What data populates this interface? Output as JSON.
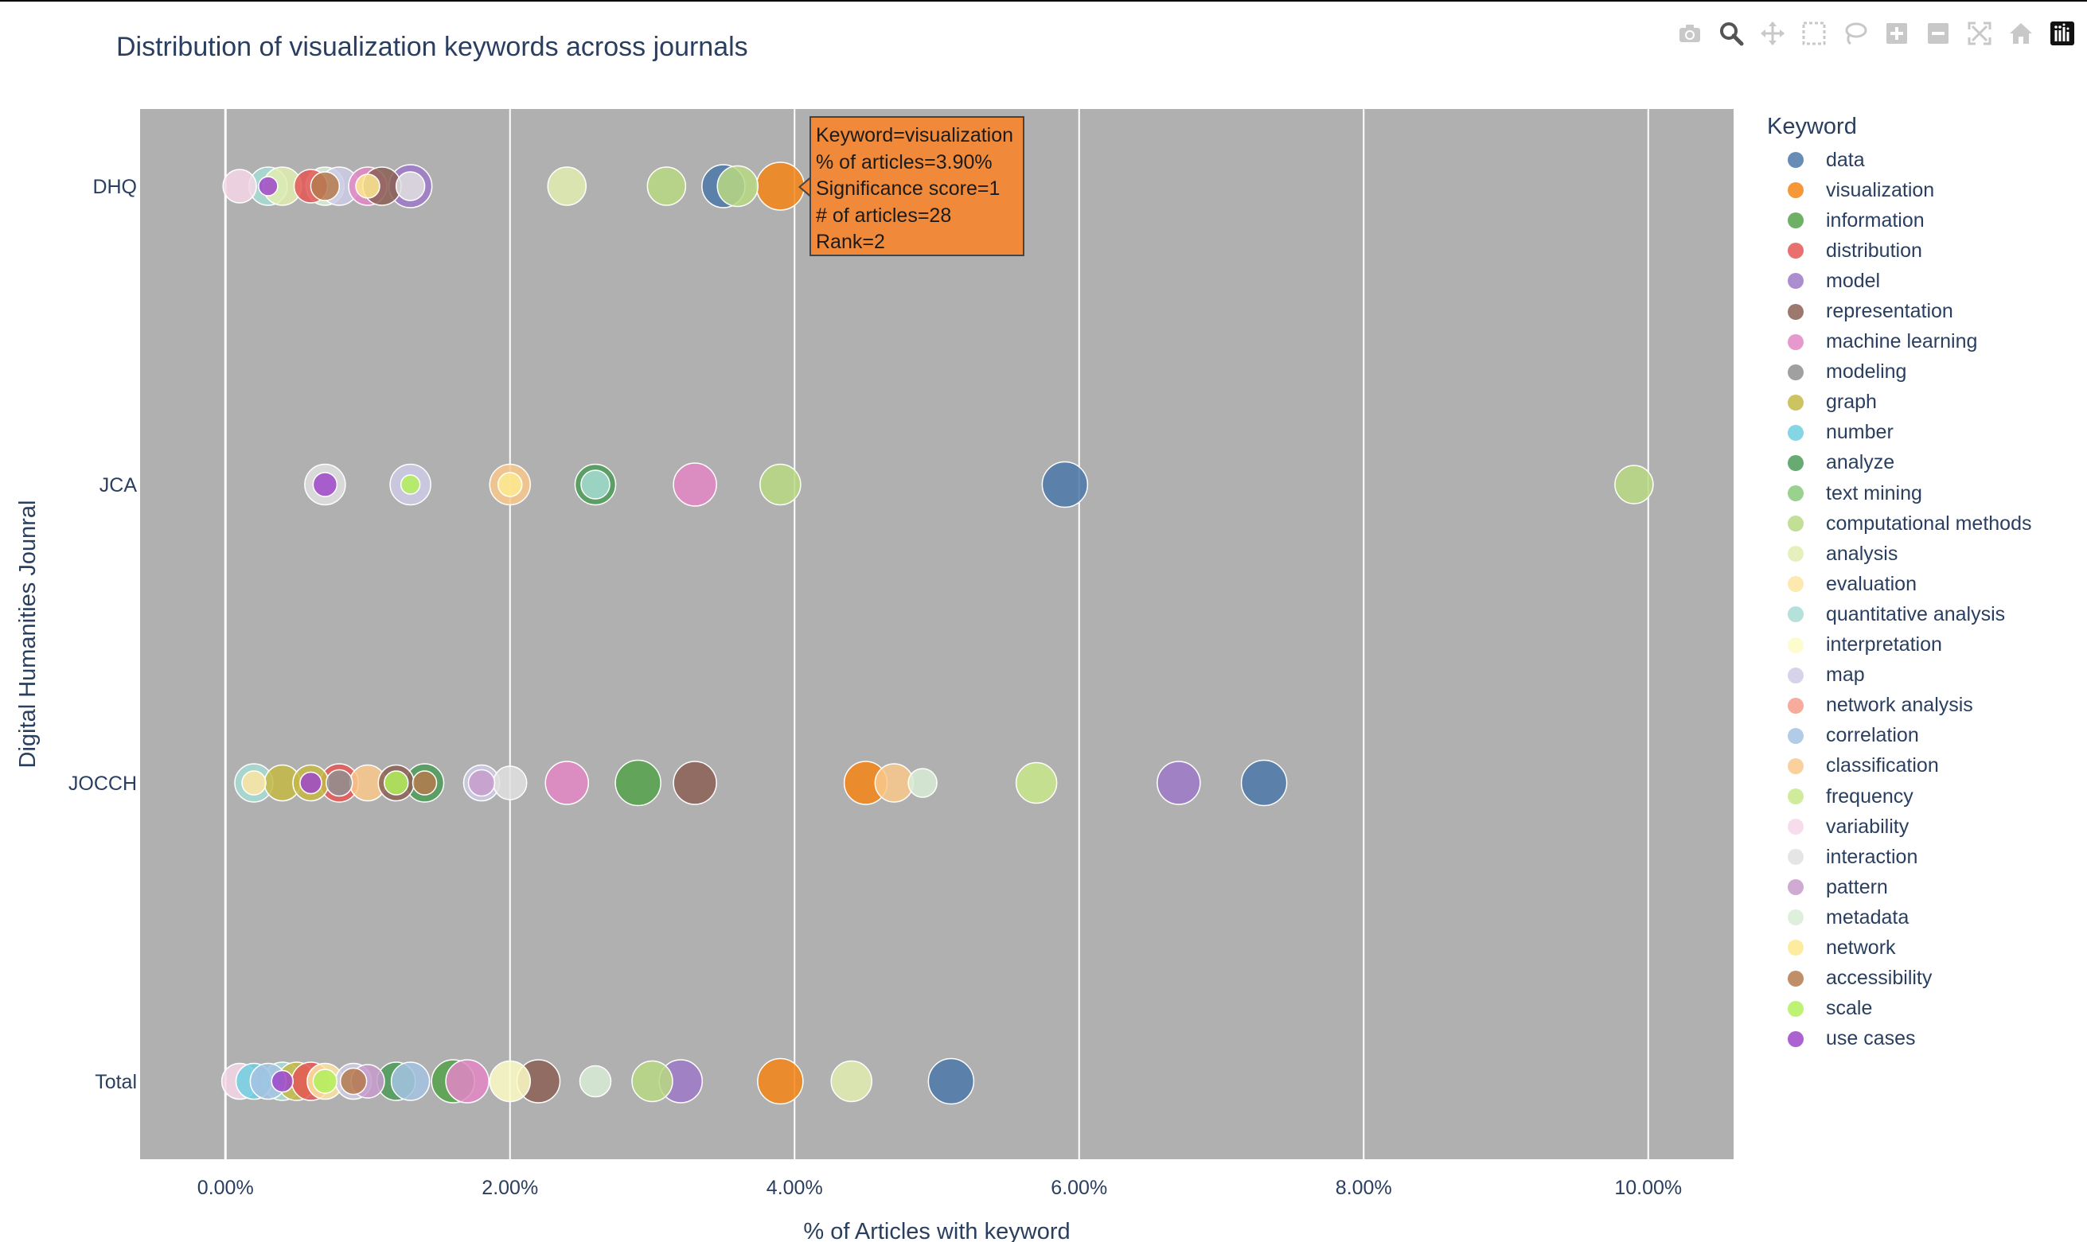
{
  "title": "Distribution of visualization keywords across journals",
  "modebar": {
    "buttons": [
      "camera-icon",
      "zoom-icon",
      "pan-icon",
      "box-select-icon",
      "lasso-icon",
      "zoom-in-icon",
      "zoom-out-icon",
      "autoscale-icon",
      "home-icon",
      "plotly-logo-icon"
    ]
  },
  "legend": {
    "title": "Keyword",
    "items": [
      {
        "label": "data",
        "color": "#4c78a8"
      },
      {
        "label": "visualization",
        "color": "#f58518"
      },
      {
        "label": "information",
        "color": "#54a24b"
      },
      {
        "label": "distribution",
        "color": "#e45756"
      },
      {
        "label": "model",
        "color": "#9d7ac8"
      },
      {
        "label": "representation",
        "color": "#8c6056"
      },
      {
        "label": "machine learning",
        "color": "#e387c6"
      },
      {
        "label": "modeling",
        "color": "#8f8f8f"
      },
      {
        "label": "graph",
        "color": "#c5b845"
      },
      {
        "label": "number",
        "color": "#6fcfe0"
      },
      {
        "label": "analyze",
        "color": "#4c9c5a"
      },
      {
        "label": "text mining",
        "color": "#88c97b"
      },
      {
        "label": "computational methods",
        "color": "#b8d982"
      },
      {
        "label": "analysis",
        "color": "#e2edb0"
      },
      {
        "label": "evaluation",
        "color": "#fde4a2"
      },
      {
        "label": "quantitative analysis",
        "color": "#a7dcd4"
      },
      {
        "label": "interpretation",
        "color": "#fdfbc6"
      },
      {
        "label": "map",
        "color": "#cdcbe6"
      },
      {
        "label": "network analysis",
        "color": "#f59c8c"
      },
      {
        "label": "correlation",
        "color": "#a5c3e3"
      },
      {
        "label": "classification",
        "color": "#f9c98c"
      },
      {
        "label": "frequency",
        "color": "#c9e88c"
      },
      {
        "label": "variability",
        "color": "#f6d7e7"
      },
      {
        "label": "interaction",
        "color": "#e0e0e0"
      },
      {
        "label": "pattern",
        "color": "#c79ccc"
      },
      {
        "label": "metadata",
        "color": "#d8edd6"
      },
      {
        "label": "network",
        "color": "#fde98f"
      },
      {
        "label": "accessibility",
        "color": "#b57a4e"
      },
      {
        "label": "scale",
        "color": "#b2f05c"
      },
      {
        "label": "use cases",
        "color": "#9e47c9"
      }
    ]
  },
  "tooltip": {
    "lines": [
      "Keyword=visualization",
      "% of articles=3.90%",
      "Significance score=1",
      "# of articles=28",
      "Rank=2"
    ]
  },
  "chart_data": {
    "type": "scatter",
    "title": "Distribution of visualization keywords across journals",
    "xlabel": "% of Articles with keyword",
    "ylabel": "Digital Humanities Jounral",
    "xlim": [
      -0.6,
      10.6
    ],
    "x_ticks": [
      0,
      2,
      4,
      6,
      8,
      10
    ],
    "x_tick_labels": [
      "0.00%",
      "2.00%",
      "4.00%",
      "6.00%",
      "8.00%",
      "10.00%"
    ],
    "categories": [
      "DHQ",
      "JCA",
      "JOCCH",
      "Total"
    ],
    "plot_bgcolor": "#b0b0b0",
    "grid": true,
    "legend_position": "right",
    "points": [
      {
        "journal": "DHQ",
        "keyword": "variability",
        "x": 0.1,
        "size": 0.7
      },
      {
        "journal": "DHQ",
        "keyword": "quantitative analysis",
        "x": 0.3,
        "size": 0.8
      },
      {
        "journal": "DHQ",
        "keyword": "use cases",
        "x": 0.3,
        "size": 0.4
      },
      {
        "journal": "DHQ",
        "keyword": "analysis",
        "x": 0.4,
        "size": 0.8
      },
      {
        "journal": "DHQ",
        "keyword": "distribution",
        "x": 0.6,
        "size": 0.7
      },
      {
        "journal": "DHQ",
        "keyword": "metadata",
        "x": 0.7,
        "size": 0.8
      },
      {
        "journal": "DHQ",
        "keyword": "accessibility",
        "x": 0.7,
        "size": 0.6
      },
      {
        "journal": "DHQ",
        "keyword": "map",
        "x": 0.8,
        "size": 0.8
      },
      {
        "journal": "DHQ",
        "keyword": "machine learning",
        "x": 1.0,
        "size": 0.8
      },
      {
        "journal": "DHQ",
        "keyword": "network",
        "x": 1.0,
        "size": 0.5
      },
      {
        "journal": "DHQ",
        "keyword": "representation",
        "x": 1.1,
        "size": 0.8
      },
      {
        "journal": "DHQ",
        "keyword": "model",
        "x": 1.3,
        "size": 0.9
      },
      {
        "journal": "DHQ",
        "keyword": "interaction",
        "x": 1.3,
        "size": 0.6
      },
      {
        "journal": "DHQ",
        "keyword": "analysis",
        "x": 2.4,
        "size": 0.8
      },
      {
        "journal": "DHQ",
        "keyword": "computational methods",
        "x": 3.1,
        "size": 0.8
      },
      {
        "journal": "DHQ",
        "keyword": "data",
        "x": 3.5,
        "size": 0.9
      },
      {
        "journal": "DHQ",
        "keyword": "computational methods",
        "x": 3.6,
        "size": 0.85
      },
      {
        "journal": "DHQ",
        "keyword": "visualization",
        "x": 3.9,
        "size": 1.0
      },
      {
        "journal": "JCA",
        "keyword": "interaction",
        "x": 0.7,
        "size": 0.85
      },
      {
        "journal": "JCA",
        "keyword": "use cases",
        "x": 0.7,
        "size": 0.5
      },
      {
        "journal": "JCA",
        "keyword": "map",
        "x": 1.3,
        "size": 0.85
      },
      {
        "journal": "JCA",
        "keyword": "scale",
        "x": 1.3,
        "size": 0.4
      },
      {
        "journal": "JCA",
        "keyword": "classification",
        "x": 2.0,
        "size": 0.85
      },
      {
        "journal": "JCA",
        "keyword": "network",
        "x": 2.0,
        "size": 0.5
      },
      {
        "journal": "JCA",
        "keyword": "analyze",
        "x": 2.6,
        "size": 0.85
      },
      {
        "journal": "JCA",
        "keyword": "quantitative analysis",
        "x": 2.6,
        "size": 0.6
      },
      {
        "journal": "JCA",
        "keyword": "machine learning",
        "x": 3.3,
        "size": 0.9
      },
      {
        "journal": "JCA",
        "keyword": "computational methods",
        "x": 3.9,
        "size": 0.85
      },
      {
        "journal": "JCA",
        "keyword": "data",
        "x": 5.9,
        "size": 0.95
      },
      {
        "journal": "JCA",
        "keyword": "computational methods",
        "x": 9.9,
        "size": 0.8
      },
      {
        "journal": "JOCCH",
        "keyword": "quantitative analysis",
        "x": 0.2,
        "size": 0.8
      },
      {
        "journal": "JOCCH",
        "keyword": "evaluation",
        "x": 0.2,
        "size": 0.5
      },
      {
        "journal": "JOCCH",
        "keyword": "graph",
        "x": 0.4,
        "size": 0.75
      },
      {
        "journal": "JOCCH",
        "keyword": "graph",
        "x": 0.6,
        "size": 0.75
      },
      {
        "journal": "JOCCH",
        "keyword": "use cases",
        "x": 0.6,
        "size": 0.45
      },
      {
        "journal": "JOCCH",
        "keyword": "distribution",
        "x": 0.8,
        "size": 0.8
      },
      {
        "journal": "JOCCH",
        "keyword": "modeling",
        "x": 0.8,
        "size": 0.55
      },
      {
        "journal": "JOCCH",
        "keyword": "classification",
        "x": 1.0,
        "size": 0.75
      },
      {
        "journal": "JOCCH",
        "keyword": "representation",
        "x": 1.2,
        "size": 0.75
      },
      {
        "journal": "JOCCH",
        "keyword": "scale",
        "x": 1.2,
        "size": 0.5
      },
      {
        "journal": "JOCCH",
        "keyword": "analyze",
        "x": 1.4,
        "size": 0.8
      },
      {
        "journal": "JOCCH",
        "keyword": "accessibility",
        "x": 1.4,
        "size": 0.5
      },
      {
        "journal": "JOCCH",
        "keyword": "map",
        "x": 1.8,
        "size": 0.75
      },
      {
        "journal": "JOCCH",
        "keyword": "pattern",
        "x": 1.8,
        "size": 0.55
      },
      {
        "journal": "JOCCH",
        "keyword": "interaction",
        "x": 2.0,
        "size": 0.7
      },
      {
        "journal": "JOCCH",
        "keyword": "machine learning",
        "x": 2.4,
        "size": 0.9
      },
      {
        "journal": "JOCCH",
        "keyword": "information",
        "x": 2.9,
        "size": 0.95
      },
      {
        "journal": "JOCCH",
        "keyword": "representation",
        "x": 3.3,
        "size": 0.9
      },
      {
        "journal": "JOCCH",
        "keyword": "visualization",
        "x": 4.5,
        "size": 0.9
      },
      {
        "journal": "JOCCH",
        "keyword": "classification",
        "x": 4.7,
        "size": 0.8
      },
      {
        "journal": "JOCCH",
        "keyword": "metadata",
        "x": 4.9,
        "size": 0.6
      },
      {
        "journal": "JOCCH",
        "keyword": "frequency",
        "x": 5.7,
        "size": 0.85
      },
      {
        "journal": "JOCCH",
        "keyword": "model",
        "x": 6.7,
        "size": 0.9
      },
      {
        "journal": "JOCCH",
        "keyword": "data",
        "x": 7.3,
        "size": 0.95
      },
      {
        "journal": "Total",
        "keyword": "variability",
        "x": 0.1,
        "size": 0.75
      },
      {
        "journal": "Total",
        "keyword": "number",
        "x": 0.2,
        "size": 0.75
      },
      {
        "journal": "Total",
        "keyword": "correlation",
        "x": 0.3,
        "size": 0.75
      },
      {
        "journal": "Total",
        "keyword": "quantitative analysis",
        "x": 0.4,
        "size": 0.8
      },
      {
        "journal": "Total",
        "keyword": "graph",
        "x": 0.5,
        "size": 0.8
      },
      {
        "journal": "Total",
        "keyword": "use cases",
        "x": 0.4,
        "size": 0.45
      },
      {
        "journal": "Total",
        "keyword": "distribution",
        "x": 0.6,
        "size": 0.8
      },
      {
        "journal": "Total",
        "keyword": "evaluation",
        "x": 0.7,
        "size": 0.75
      },
      {
        "journal": "Total",
        "keyword": "scale",
        "x": 0.7,
        "size": 0.5
      },
      {
        "journal": "Total",
        "keyword": "map",
        "x": 0.9,
        "size": 0.75
      },
      {
        "journal": "Total",
        "keyword": "accessibility",
        "x": 0.9,
        "size": 0.55
      },
      {
        "journal": "Total",
        "keyword": "pattern",
        "x": 1.0,
        "size": 0.7
      },
      {
        "journal": "Total",
        "keyword": "analyze",
        "x": 1.2,
        "size": 0.8
      },
      {
        "journal": "Total",
        "keyword": "correlation",
        "x": 1.3,
        "size": 0.8
      },
      {
        "journal": "Total",
        "keyword": "information",
        "x": 1.6,
        "size": 0.9
      },
      {
        "journal": "Total",
        "keyword": "machine learning",
        "x": 1.7,
        "size": 0.9
      },
      {
        "journal": "Total",
        "keyword": "interpretation",
        "x": 2.0,
        "size": 0.85
      },
      {
        "journal": "Total",
        "keyword": "representation",
        "x": 2.2,
        "size": 0.9
      },
      {
        "journal": "Total",
        "keyword": "metadata",
        "x": 2.6,
        "size": 0.65
      },
      {
        "journal": "Total",
        "keyword": "computational methods",
        "x": 3.0,
        "size": 0.85
      },
      {
        "journal": "Total",
        "keyword": "model",
        "x": 3.2,
        "size": 0.9
      },
      {
        "journal": "Total",
        "keyword": "visualization",
        "x": 3.9,
        "size": 0.95
      },
      {
        "journal": "Total",
        "keyword": "analysis",
        "x": 4.4,
        "size": 0.85
      },
      {
        "journal": "Total",
        "keyword": "data",
        "x": 5.1,
        "size": 0.95
      }
    ]
  }
}
